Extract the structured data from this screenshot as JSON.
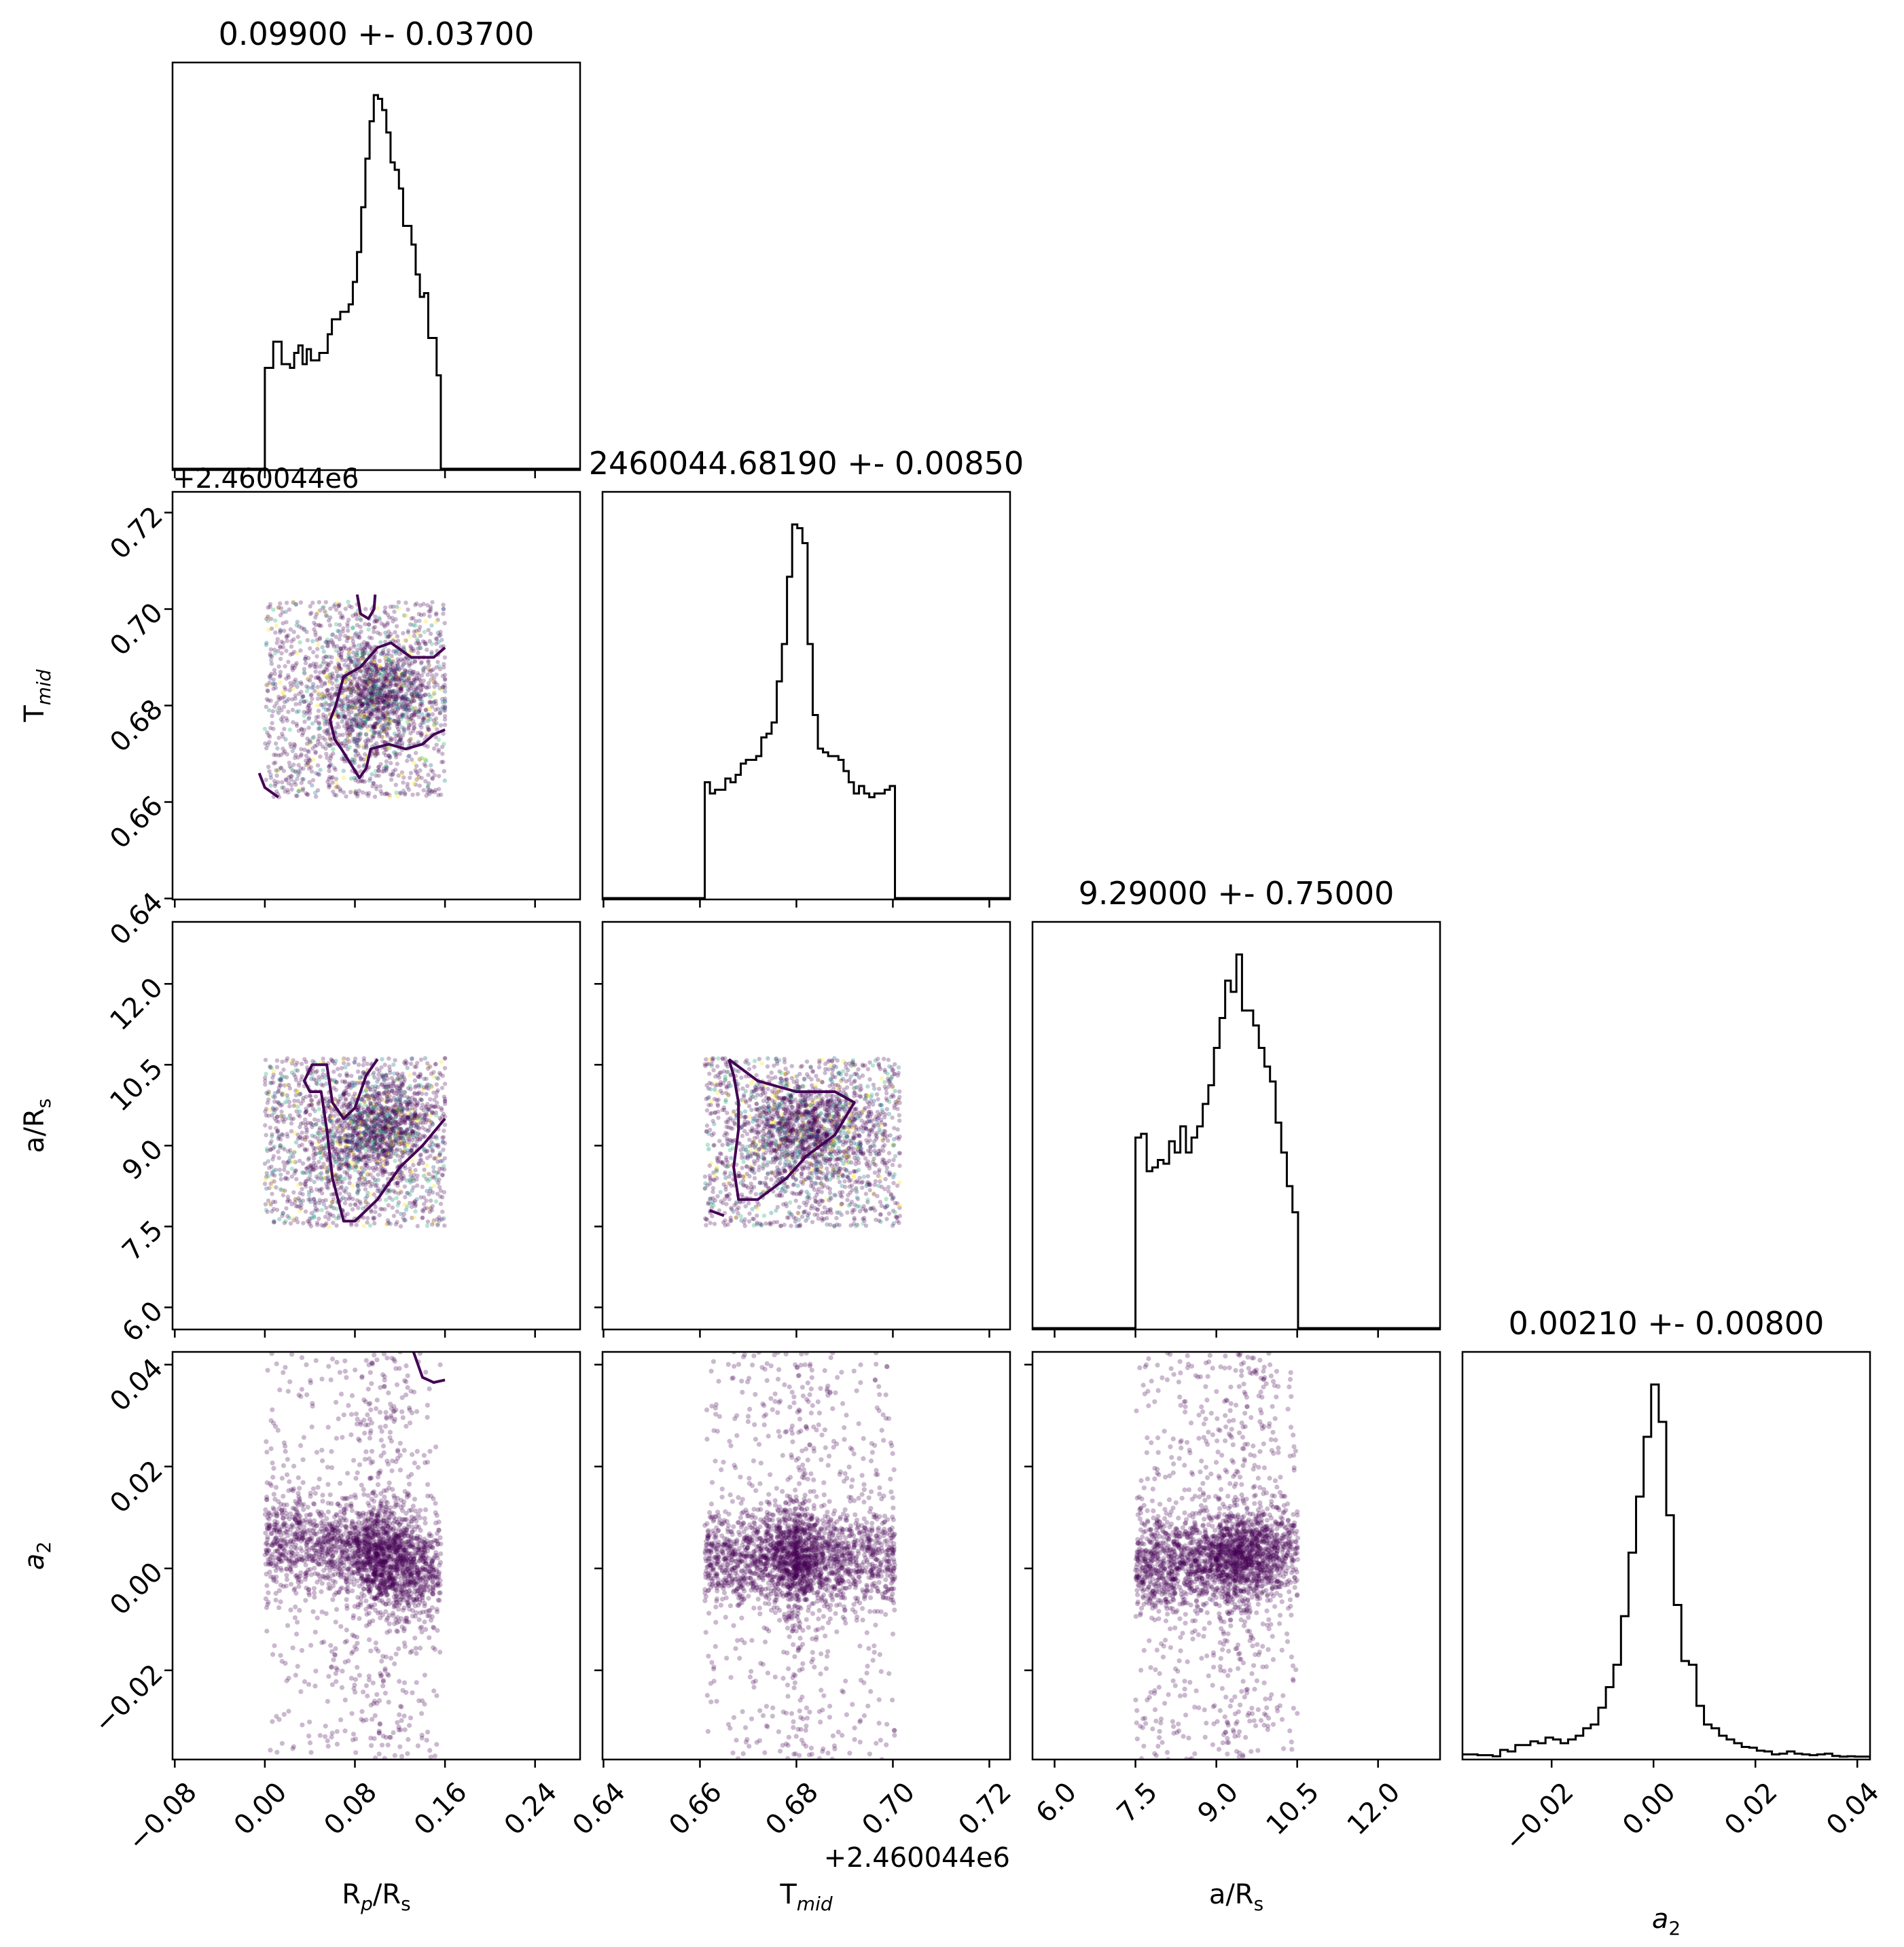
{
  "chart_data": {
    "type": "corner",
    "grid": false,
    "colors": {
      "hist": "#000000",
      "scatter": "#440154",
      "contour": "#440154",
      "scatter_accents": [
        "#31688e",
        "#35b779",
        "#fde725",
        "#21918c"
      ]
    },
    "params": [
      {
        "key": "rp",
        "label": "R",
        "label_sub": "p",
        "label_tail": "/R",
        "label_sub2": "s",
        "title": "0.09900 +- 0.03700",
        "mean": 0.099,
        "std": 0.037,
        "range": [
          -0.082,
          0.28
        ],
        "ticks": [
          -0.08,
          0.0,
          0.08,
          0.16,
          0.24
        ],
        "tick_labels": [
          "−0.08",
          "0.00",
          "0.08",
          "0.16",
          "0.24"
        ],
        "offset_text": "",
        "hist": {
          "lo": 0.0,
          "hi": 0.16,
          "heights": [
            0.27,
            0.27,
            0.34,
            0.34,
            0.28,
            0.28,
            0.27,
            0.31,
            0.33,
            0.28,
            0.32,
            0.29,
            0.29,
            0.31,
            0.31,
            0.36,
            0.4,
            0.4,
            0.42,
            0.42,
            0.44,
            0.5,
            0.58,
            0.7,
            0.83,
            0.93,
            1.0,
            0.99,
            0.96,
            0.9,
            0.82,
            0.8,
            0.75,
            0.65,
            0.65,
            0.6,
            0.52,
            0.46,
            0.47,
            0.35,
            0.35,
            0.25,
            0.0
          ]
        }
      },
      {
        "key": "tmid",
        "label": "T",
        "label_sub": "mid",
        "label_tail": "",
        "label_sub2": "",
        "title": "2460044.68190 +- 0.00850",
        "mean": 0.6819,
        "std": 0.0085,
        "range": [
          0.6398,
          0.7243
        ],
        "ticks": [
          0.64,
          0.66,
          0.68,
          0.7,
          0.72
        ],
        "tick_labels": [
          "0.64",
          "0.66",
          "0.68",
          "0.70",
          "0.72"
        ],
        "offset_text": "+2.460044e6",
        "hist": {
          "lo": 0.661,
          "hi": 0.7015,
          "heights": [
            0.31,
            0.28,
            0.29,
            0.29,
            0.32,
            0.31,
            0.33,
            0.36,
            0.37,
            0.37,
            0.38,
            0.43,
            0.44,
            0.47,
            0.58,
            0.68,
            0.86,
            1.0,
            0.99,
            0.95,
            0.68,
            0.49,
            0.4,
            0.39,
            0.38,
            0.38,
            0.37,
            0.34,
            0.31,
            0.28,
            0.3,
            0.28,
            0.27,
            0.28,
            0.28,
            0.29,
            0.3,
            0.0
          ]
        }
      },
      {
        "key": "ars",
        "label": "a/R",
        "label_sub": "s",
        "label_tail": "",
        "label_sub2": "",
        "title": "9.29000 +- 0.75000",
        "mean": 9.29,
        "std": 0.75,
        "range": [
          5.59,
          13.15
        ],
        "ticks": [
          6.0,
          7.5,
          9.0,
          10.5,
          12.0
        ],
        "tick_labels": [
          "6.0",
          "7.5",
          "9.0",
          "10.5",
          "12.0"
        ],
        "offset_text": "",
        "hist": {
          "lo": 7.5,
          "hi": 10.62,
          "heights": [
            0.51,
            0.52,
            0.42,
            0.43,
            0.45,
            0.44,
            0.5,
            0.47,
            0.54,
            0.47,
            0.51,
            0.54,
            0.6,
            0.65,
            0.75,
            0.83,
            0.93,
            0.9,
            1.0,
            0.85,
            0.85,
            0.81,
            0.75,
            0.7,
            0.66,
            0.55,
            0.47,
            0.38,
            0.31,
            0.0
          ]
        }
      },
      {
        "key": "a2",
        "label": "a",
        "label_sub": "2",
        "label_tail": "",
        "label_sub2": "",
        "title": "0.00210 +- 0.00800",
        "mean": 0.0021,
        "std": 0.008,
        "range": [
          -0.0375,
          0.0425
        ],
        "ticks": [
          -0.02,
          0.0,
          0.02,
          0.04
        ],
        "tick_labels": [
          "−0.02",
          "0.00",
          "0.02",
          "0.04"
        ],
        "offset_text": "",
        "hist": {
          "lo": -0.0375,
          "hi": 0.0425,
          "heights": [
            0.01,
            0.01,
            0.008,
            0.008,
            0.005,
            0.022,
            0.018,
            0.035,
            0.035,
            0.045,
            0.04,
            0.055,
            0.05,
            0.04,
            0.05,
            0.06,
            0.08,
            0.09,
            0.135,
            0.19,
            0.25,
            0.38,
            0.55,
            0.7,
            0.86,
            1.0,
            0.9,
            0.65,
            0.41,
            0.26,
            0.25,
            0.14,
            0.09,
            0.08,
            0.06,
            0.05,
            0.04,
            0.03,
            0.028,
            0.02,
            0.018,
            0.01,
            0.012,
            0.018,
            0.012,
            0.01,
            0.008,
            0.01,
            0.012,
            0.006,
            0.004,
            0.005,
            0.004,
            0.004
          ]
        }
      }
    ],
    "pairs": [
      {
        "row": 1,
        "col": 0,
        "corr": 0.0,
        "contours": [
          {
            "pts": [
              [
                0.012,
                0.661
              ],
              [
                0.0,
                0.663
              ],
              [
                -0.005,
                0.666
              ]
            ]
          },
          {
            "pts": [
              [
                0.082,
                0.703
              ],
              [
                0.085,
                0.699
              ],
              [
                0.092,
                0.698
              ],
              [
                0.097,
                0.7
              ],
              [
                0.098,
                0.703
              ]
            ]
          },
          {
            "pts": [
              [
                0.16,
                0.692
              ],
              [
                0.15,
                0.69
              ],
              [
                0.13,
                0.69
              ],
              [
                0.112,
                0.693
              ],
              [
                0.1,
                0.692
              ],
              [
                0.085,
                0.688
              ],
              [
                0.07,
                0.686
              ],
              [
                0.063,
                0.68
              ],
              [
                0.058,
                0.677
              ],
              [
                0.062,
                0.673
              ],
              [
                0.068,
                0.671
              ],
              [
                0.076,
                0.668
              ],
              [
                0.084,
                0.665
              ],
              [
                0.09,
                0.667
              ],
              [
                0.094,
                0.671
              ],
              [
                0.11,
                0.672
              ],
              [
                0.125,
                0.671
              ],
              [
                0.14,
                0.672
              ],
              [
                0.15,
                0.674
              ],
              [
                0.16,
                0.675
              ]
            ]
          }
        ]
      },
      {
        "row": 2,
        "col": 0,
        "corr": 0.28,
        "contours": [
          {
            "pts": [
              [
                0.16,
                9.5
              ],
              [
                0.14,
                9.0
              ],
              [
                0.12,
                8.6
              ],
              [
                0.1,
                8.0
              ],
              [
                0.08,
                7.6
              ],
              [
                0.07,
                7.6
              ],
              [
                0.06,
                8.4
              ],
              [
                0.055,
                9.3
              ],
              [
                0.05,
                10.0
              ],
              [
                0.04,
                10.0
              ],
              [
                0.035,
                10.2
              ],
              [
                0.042,
                10.5
              ],
              [
                0.055,
                10.5
              ],
              [
                0.06,
                9.8
              ],
              [
                0.07,
                9.5
              ],
              [
                0.08,
                9.7
              ],
              [
                0.09,
                10.3
              ],
              [
                0.1,
                10.6
              ]
            ]
          }
        ]
      },
      {
        "row": 2,
        "col": 1,
        "corr": 0.0,
        "contours": [
          {
            "pts": [
              [
                0.662,
                7.8
              ],
              [
                0.665,
                7.7
              ]
            ]
          },
          {
            "pts": [
              [
                0.666,
                10.6
              ],
              [
                0.672,
                10.2
              ],
              [
                0.68,
                10.0
              ],
              [
                0.688,
                10.0
              ],
              [
                0.692,
                9.8
              ],
              [
                0.688,
                9.2
              ],
              [
                0.682,
                8.8
              ],
              [
                0.678,
                8.4
              ],
              [
                0.672,
                8.0
              ],
              [
                0.668,
                8.0
              ],
              [
                0.667,
                8.6
              ],
              [
                0.668,
                9.3
              ],
              [
                0.668,
                9.8
              ],
              [
                0.667,
                10.3
              ],
              [
                0.666,
                10.6
              ]
            ]
          }
        ]
      },
      {
        "row": 3,
        "col": 0,
        "corr": -0.45,
        "contours": [
          {
            "pts": [
              [
                0.132,
                0.0425
              ],
              [
                0.14,
                0.0375
              ],
              [
                0.15,
                0.0365
              ],
              [
                0.16,
                0.037
              ]
            ]
          }
        ]
      },
      {
        "row": 3,
        "col": 1,
        "corr": 0.0,
        "contours": []
      },
      {
        "row": 3,
        "col": 2,
        "corr": 0.25,
        "contours": []
      }
    ]
  }
}
